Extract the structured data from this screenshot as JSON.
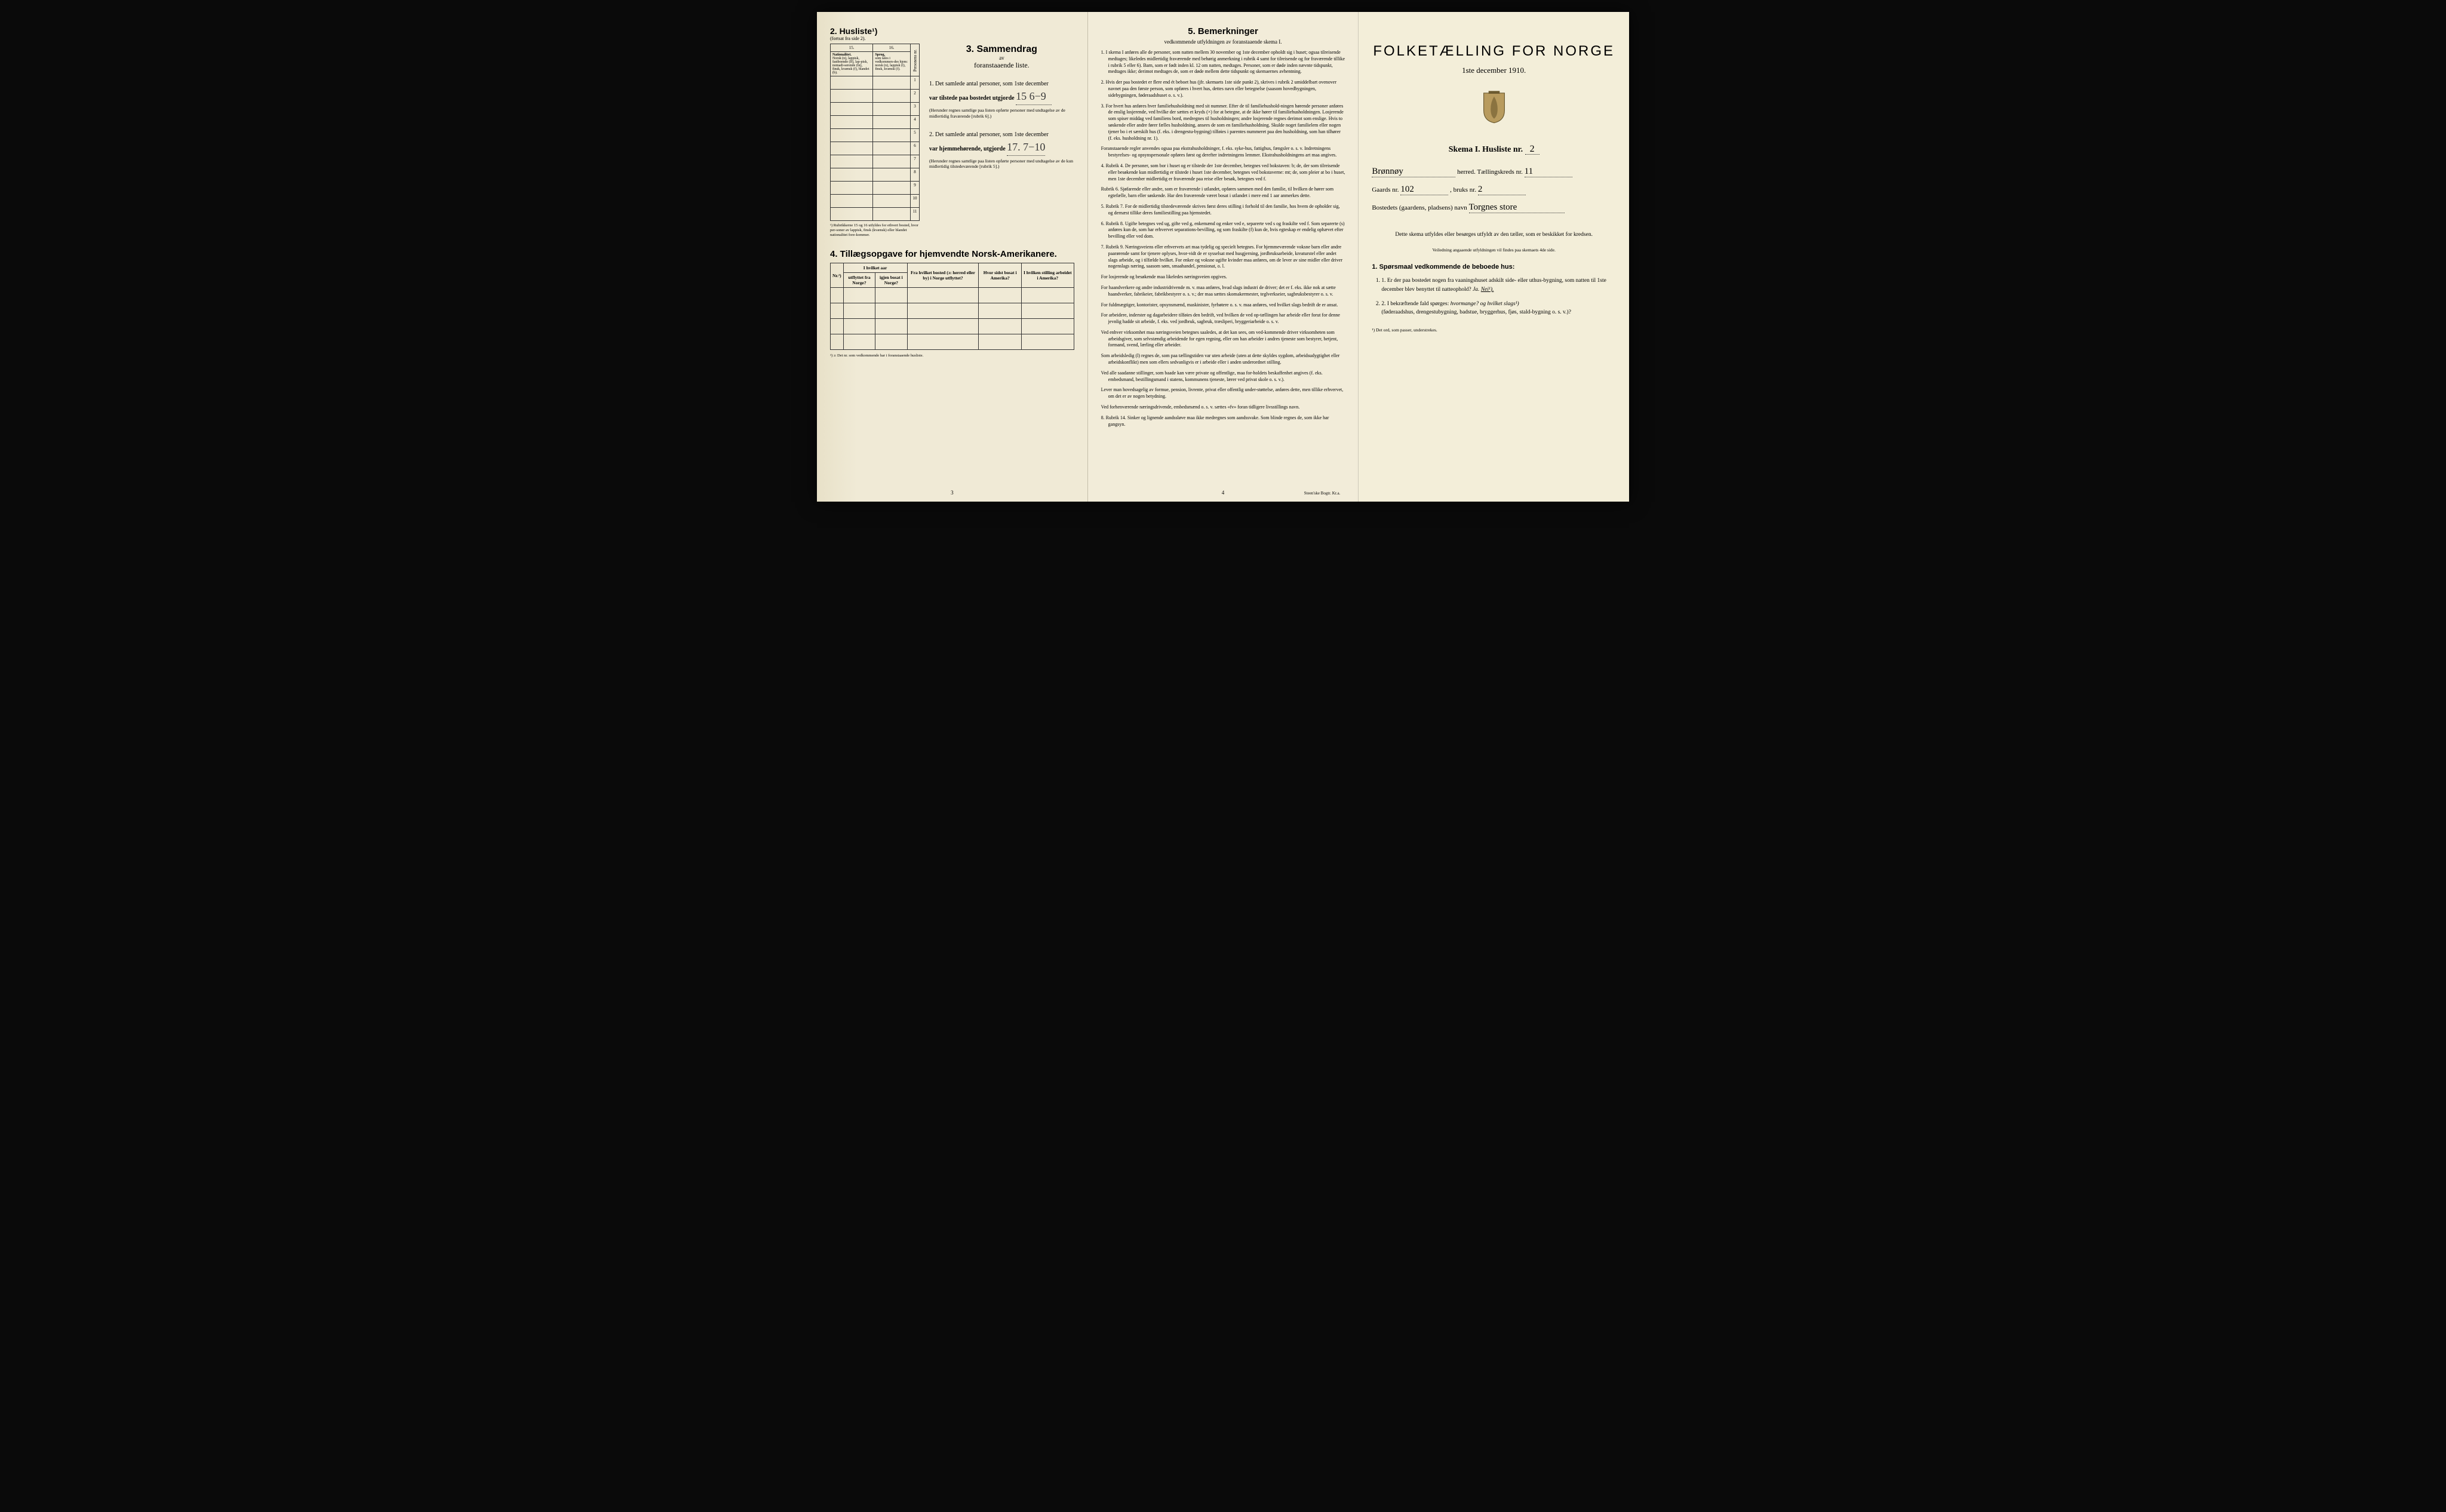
{
  "colors": {
    "paper": "#f0ead6",
    "paper2": "#f2ecd9",
    "paper3": "#f3eed9",
    "ink": "#1a1a1a",
    "background": "#0a0a0a"
  },
  "page1": {
    "husliste": {
      "title": "2. Husliste¹)",
      "subtitle": "(fortsat fra side 2).",
      "col15": "15.",
      "col16": "16.",
      "hdr_nat": "Nationalitet.",
      "hdr_nat_txt": "Norsk (n), lappisk, fastboende (lf), lap-pisk, nomadi-serende (ln), finsk, kvænsk (f), blandet (b).",
      "hdr_sprog": "Sprog,",
      "hdr_sprog_txt": "som tales i vedkommen-des hjem: norsk (n), lappisk (l), finsk, kvænsk (f).",
      "hdr_pernr": "Personens nr.",
      "rows": 11,
      "footnote": "¹) Rubrikkerne 15 og 16 utfyldes for ethvert bosted, hvor per-soner av lappisk, finsk (kvænsk) eller blandet nationalitet fore-kommer."
    },
    "sammendrag": {
      "num": "3.",
      "title": "Sammendrag",
      "av": "av",
      "sub": "foranstaaende liste.",
      "item1_pre": "1. Det samlede antal personer, som 1ste december",
      "item1_mid": "var tilstede paa bostedet utgjorde",
      "item1_val": "15 6−9",
      "item1_note": "(Herunder regnes samtlige paa listen opførte personer med undtagelse av de midlertidig fraværende [rubrik 6].)",
      "item2_pre": "2. Det samlede antal personer, som 1ste december",
      "item2_mid": "var hjemmehørende, utgjorde",
      "item2_val": "17. 7−10",
      "item2_note": "(Herunder regnes samtlige paa listen opførte personer med undtagelse av de kun midlertidig tilstedeværende [rubrik 5].)"
    },
    "tillaeg": {
      "title": "4. Tillægsopgave for hjemvendte Norsk-Amerikanere.",
      "h_nr": "Nr.²)",
      "h_aar": "I hvilket aar",
      "h_utfl": "utflyttet fra Norge?",
      "h_igjen": "igjen bosat i Norge?",
      "h_fra": "Fra hvilket bosted (ɔ: herred eller by) i Norge utflyttet?",
      "h_sidst": "Hvor sidst bosat i Amerika?",
      "h_stilling": "I hvilken stilling arbeidet i Amerika?",
      "rows": 4,
      "footnote": "²) ɔ: Det nr. som vedkommende har i foranstaaende husliste."
    },
    "pagenum": "3"
  },
  "page2": {
    "title": "5. Bemerkninger",
    "subtitle": "vedkommende utfyldningen av foranstaaende skema I.",
    "items": [
      "1. I skema I anføres alle de personer, som natten mellem 30 november og 1ste december opholdt sig i huset; ogsaa tilreisende medtages; likeledes midlertidig fraværende med behørig anmerkning i rubrik 4 samt for tilreisende og for fraværende tillike i rubrik 5 eller 6). Barn, som er født inden kl. 12 om natten, medtages. Personer, som er døde inden nævnte tidspunkt, medtages ikke; derimot medtages de, som er døde mellem dette tidspunkt og skemaernes avhentning.",
      "2. Hvis der paa bostedet er flere end ét beboet hus (jfr. skemaets 1ste side punkt 2), skrives i rubrik 2 umiddelbart ovenover navnet paa den første person, som opføres i hvert hus, dettes navn eller betegnelse (saasom hovedbygningen, sidebygningen, føderaadshuset o. s. v.).",
      "3. For hvert hus anføres hver familiehusholdning med sit nummer. Efter de til familiehushold-ningen hørende personer anføres de enslig losjerende, ved hvilke der sættes et kryds (×) for at betegne, at de ikke hører til familiehusholdningen. Losjerende som spiser middag ved familiens bord, medregnes til husholdningen; andre losjerende regnes derimot som enslige. Hvis to søskende eller andre fører fælles husholdning, ansees de som en familiehusholdning. Skulde noget familielem eller nogen tjener bo i et særskilt hus (f. eks. i drengestu-bygning) tilføies i parentes nummeret paa den husholdning, som han tilhører (f. eks. husholdning nr. 1).",
      "Foranstaaende regler anvendes ogsaa paa ekstrahusholdninger, f. eks. syke-hus, fattighus, fængsler o. s. v. Indretningens bestyrelses- og opsynspersonale opføres først og derefter indretningens lemmer. Ekstrahusholdningens art maa angives.",
      "4. Rubrik 4. De personer, som bor i huset og er tilstede der 1ste december, betegnes ved bokstaven: b; de, der som tilreisende eller besøkende kun midlertidig er tilstede i huset 1ste december, betegnes ved bokstaverne: mt; de, som pleier at bo i huset, men 1ste december midlertidig er fraværende paa reise eller besøk, betegnes ved f.",
      "Rubrik 6. Sjøfarende eller andre, som er fraværende i utlandet, opføres sammen med den familie, til hvilken de hører som egtefælle, barn eller søskende. Har den fraværende været bosat i utlandet i mere end 1 aar anmerkes dette.",
      "5. Rubrik 7. For de midlertidig tilstedeværende skrives først deres stilling i forhold til den familie, hos hvem de opholder sig, og dernæst tillike deres familiestilling paa hjemstedet.",
      "6. Rubrik 8. Ugifte betegnes ved ug, gifte ved g, enkemænd og enker ved e, separerte ved s og fraskilte ved f. Som separerte (s) anføres kun de, som har erhvervet separations-bevilling, og som fraskilte (f) kun de, hvis egteskap er endelig ophævet efter bevilling eller ved dom.",
      "7. Rubrik 9. Næringsveiens eller erhvervets art maa tydelig og specielt betegnes. For hjemmeværende voksne barn eller andre paarørende samt for tjenere oplyses, hvor-vidt de er sysselsat med husgjerning, jordbruksarbeide, kreaturstel eller andet slags arbeide, og i tilfælde hvilket. For enker og voksne ugifte kvinder maa anføres, om de lever av sine midler eller driver nogenslags næring, saasom søm, smaahandel, pensionat, o. l.",
      "For losjerende og besøkende maa likeledes næringsveien opgives.",
      "For haandverkere og andre industridrivende m. v. maa anføres, hvad slags industri de driver; det er f. eks. ikke nok at sætte haandverker, fabrikeier, fabrikbestyrer o. s. v.; der maa sættes skomakermester, teglverkseier, sagbruksbestyrer o. s. v.",
      "For fuldmægtiger, kontorister, opsynsmænd, maskinister, fyrbøtere o. s. v. maa anføres, ved hvilket slags bedrift de er ansat.",
      "For arbeidere, inderster og dagarbeidere tilføies den bedrift, ved hvilken de ved op-tællingen har arbeide eller forut for denne jevnlig hadde sit arbeide, f. eks. ved jordbruk, sagbruk, træsliperi, bryggeriarbeide o. s. v.",
      "Ved enhver virksomhet maa næringsveien betegnes saaledes, at det kan sees, om ved-kommende driver virksomheten som arbeidsgiver, som selvstændig arbeidende for egen regning, eller om han arbeider i andres tjeneste som bestyrer, betjent, formand, svend, lærling eller arbeider.",
      "Som arbeidsledig (l) regnes de, som paa tællingstiden var uten arbeide (uten at dette skyldes sygdom, arbeidsudygtighet eller arbeidskonflikt) men som ellers sedvanligvis er i arbeide eller i anden underordnet stilling.",
      "Ved alle saadanne stillinger, som baade kan være private og offentlige, maa for-holdets beskaffenhet angives (f. eks. embedsmand, bestillingsmand i statens, kommunens tjeneste, lærer ved privat skole o. s. v.).",
      "Lever man hovedsagelig av formue, pension, livrente, privat eller offentlig under-støttelse, anføres dette, men tillike erhvervet, om det er av nogen betydning.",
      "Ved forhenværende næringsdrivende, embedsmænd o. s. v. sættes «fv» foran tidligere livsstillings navn.",
      "8. Rubrik 14. Sinker og lignende aandssløve maa ikke medregnes som aandssvake. Som blinde regnes de, som ikke har gangsyn."
    ],
    "pagenum": "4",
    "printer": "Steen'ske Bogtr. Kr.a."
  },
  "page3": {
    "title": "FOLKETÆLLING FOR NORGE",
    "date": "1ste december 1910.",
    "skema": "Skema I.  Husliste nr.",
    "skema_val": "2",
    "herred_pre": "",
    "herred_val": "Brønnøy",
    "herred_post": "herred.  Tællingskreds nr.",
    "kreds_val": "11",
    "gaard_pre": "Gaards nr.",
    "gaard_val": "102",
    "bruk_pre": ", bruks nr.",
    "bruk_val": "2",
    "bosted_pre": "Bostedets (gaardens, pladsens) navn",
    "bosted_val": "Torgnes store",
    "desc": "Dette skema utfyldes eller besørges utfyldt av den tæller, som er beskikket for kredsen.",
    "desc_small": "Veiledning angaaende utfyldningen vil findes paa skemaets 4de side.",
    "q_title": "1. Spørsmaal vedkommende de beboede hus:",
    "q1": "1. Er der paa bostedet nogen fra vaaningshuset adskilt side- eller uthus-bygning, som natten til 1ste december blev benyttet til natteophold?",
    "q1_ja": "Ja.",
    "q1_nei": "Nei¹).",
    "q2": "2. I bekræftende fald spørges:",
    "q2_hvor": "hvormange?",
    "q2_og": "og hvilket slags¹)",
    "q2_sub": "(føderaadshus, drengestubygning, badstue, bryggerhus, fjøs, stald-bygning o. s. v.)?",
    "footnote": "¹) Det ord, som passer, understrekes."
  }
}
